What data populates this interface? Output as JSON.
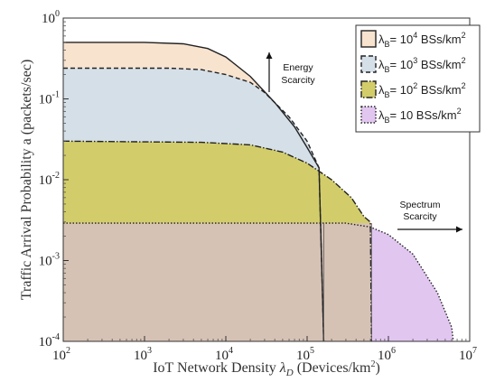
{
  "chart_data": {
    "type": "area",
    "title": "",
    "xlabel": "IoT Network Density λ_D (Devices/km²)",
    "xlabel_parts": [
      "IoT Network Density ",
      "λ",
      "D",
      " (Devices/km",
      "2",
      ")"
    ],
    "ylabel": "Traffic Arrival Probability a (packets/sec)",
    "xscale": "log",
    "yscale": "log",
    "xlim": [
      100,
      10000000
    ],
    "ylim": [
      0.0001,
      1
    ],
    "x_ticks": [
      {
        "base": "10",
        "exp": "2"
      },
      {
        "base": "10",
        "exp": "3"
      },
      {
        "base": "10",
        "exp": "4"
      },
      {
        "base": "10",
        "exp": "5"
      },
      {
        "base": "10",
        "exp": "6"
      },
      {
        "base": "10",
        "exp": "7"
      }
    ],
    "y_ticks": [
      {
        "base": "10",
        "exp": "0"
      },
      {
        "base": "10",
        "exp": "-1"
      },
      {
        "base": "10",
        "exp": "-2"
      },
      {
        "base": "10",
        "exp": "-3"
      },
      {
        "base": "10",
        "exp": "-4"
      }
    ],
    "legend_position": "top-right",
    "series": [
      {
        "name": "λB= 10^4 BSs/km²",
        "legend_parts": [
          "λ",
          "B",
          "= 10",
          "4",
          " BSs/km",
          "2"
        ],
        "fill": "#f8e3cf",
        "stroke": "#222222",
        "dash": "none",
        "points": [
          [
            100,
            0.5
          ],
          [
            1000,
            0.5
          ],
          [
            3000,
            0.48
          ],
          [
            6000,
            0.42
          ],
          [
            10000,
            0.33
          ],
          [
            20000,
            0.19
          ],
          [
            40000,
            0.09
          ],
          [
            70000,
            0.045
          ],
          [
            100000,
            0.025
          ],
          [
            140000,
            0.014
          ],
          [
            160000,
            0.0001
          ]
        ]
      },
      {
        "name": "λB= 10^3 BSs/km²",
        "legend_parts": [
          "λ",
          "B",
          "= 10",
          "3",
          " BSs/km",
          "2"
        ],
        "fill": "#d5dfe8",
        "stroke": "#222222",
        "dash": "5,3",
        "points": [
          [
            100,
            0.24
          ],
          [
            2000,
            0.24
          ],
          [
            5000,
            0.23
          ],
          [
            10000,
            0.2
          ],
          [
            20000,
            0.16
          ],
          [
            30000,
            0.12
          ],
          [
            60000,
            0.06
          ],
          [
            100000,
            0.03
          ],
          [
            140000,
            0.014
          ],
          [
            160000,
            0.0001
          ]
        ]
      },
      {
        "name": "λB= 10^2 BSs/km²",
        "legend_parts": [
          "λ",
          "B",
          "= 10",
          "2",
          " BSs/km",
          "2"
        ],
        "fill": "#d2cd6a",
        "stroke": "#222222",
        "dash": "7,2,1.5,2",
        "points": [
          [
            100,
            0.03
          ],
          [
            5000,
            0.029
          ],
          [
            20000,
            0.027
          ],
          [
            50000,
            0.022
          ],
          [
            100000,
            0.016
          ],
          [
            200000,
            0.01
          ],
          [
            350000,
            0.006
          ],
          [
            500000,
            0.0035
          ],
          [
            600000,
            0.003
          ],
          [
            620000,
            0.0001
          ]
        ]
      },
      {
        "name": "λB= 10 BSs/km²",
        "legend_parts": [
          "λ",
          "B",
          "= 10 BSs/km",
          "2"
        ],
        "fill": "#e1c6f0",
        "stroke": "#222222",
        "dash": "1.5,2",
        "points": [
          [
            100,
            0.0029
          ],
          [
            100000,
            0.0029
          ],
          [
            300000,
            0.0029
          ],
          [
            600000,
            0.0026
          ],
          [
            1000000,
            0.0021
          ],
          [
            2000000,
            0.0012
          ],
          [
            4000000,
            0.0004
          ],
          [
            6000000,
            0.00015
          ],
          [
            6300000,
            0.0001
          ]
        ]
      }
    ],
    "overlap_fill": "#d6c2b5",
    "annotations": [
      {
        "lines": [
          "Energy",
          "Scarcity"
        ],
        "arrow": "up"
      },
      {
        "lines": [
          "Spectrum",
          "Scarcity"
        ],
        "arrow": "right"
      }
    ]
  }
}
